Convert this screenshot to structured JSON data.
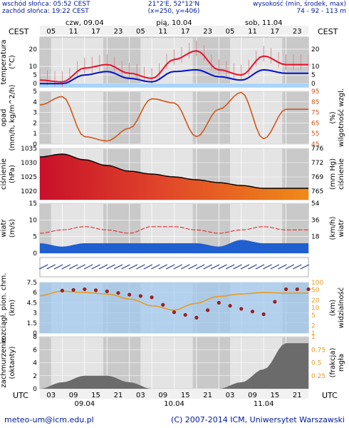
{
  "header": {
    "sunrise": "wschód słońca: 05:52 CEST",
    "sunset": "zachód słońca: 19:22 CEST",
    "coords": "21°2'E, 52°12'N",
    "grid": "(x=250, y=406)",
    "elevation_label": "wysokość (min, środek, max)",
    "elevation_values": "74 - 92 - 113 m"
  },
  "timezone_top": "CEST",
  "timezone_bottom": "UTC",
  "days_top": [
    "czw, 09.04",
    "pią, 10.04",
    "sob, 11.04"
  ],
  "hours_top": [
    "05",
    "11",
    "17",
    "23",
    "05",
    "11",
    "17",
    "23",
    "05",
    "11",
    "17",
    "23"
  ],
  "hours_bottom": [
    "03",
    "09",
    "15",
    "21",
    "03",
    "09",
    "15",
    "21",
    "03",
    "09",
    "15",
    "21"
  ],
  "days_bottom": [
    "09.04",
    "10.04",
    "11.04"
  ],
  "footer": {
    "email": "meteo-um@icm.edu.pl",
    "copyright": "(C) 2007-2014 ICM, Uniwersytet Warszawski"
  },
  "colors": {
    "temp_line": "#e8102a",
    "dew_line": "#0010c8",
    "humidity_line": "#d0561a",
    "pressure_line": "#000000",
    "wind_gust": "#e02020",
    "wind_fill": "#1f5fd0",
    "visibility_line": "#e89a20",
    "cloud_fill": "#6b6b6b",
    "panel_bg": "#e4e4e4",
    "night_bg": "#c9c9c9"
  },
  "chart_data": [
    {
      "type": "line",
      "panel": "temperature",
      "ylabel": "temperatura",
      "yunit": "(°C)",
      "ylim": [
        -2,
        27
      ],
      "yticks": [
        0,
        5,
        10,
        20
      ],
      "x_hours_utc": [
        0,
        6,
        12,
        18,
        24,
        30,
        36,
        42,
        48,
        54,
        60,
        66
      ],
      "series": [
        {
          "values": [
            2,
            1,
            9,
            11,
            6,
            3,
            14,
            19,
            8,
            5,
            16,
            11
          ]
        },
        {
          "values": [
            0,
            0,
            5,
            7,
            3,
            1,
            7,
            8,
            4,
            2,
            8,
            6
          ]
        }
      ]
    },
    {
      "type": "line",
      "panel": "precipitation-humidity",
      "ylabel": "opad",
      "yunit": "(mm/h, kg/m^2/h)",
      "ylim_left": [
        0,
        5
      ],
      "yticks_left": [
        0,
        1,
        2,
        3,
        4,
        5
      ],
      "ylabel_right": "wilgotność wzgl.",
      "yunit_right": "(%)",
      "ylim_right": [
        45,
        95
      ],
      "yticks_right": [
        45,
        55,
        65,
        75,
        85,
        95
      ],
      "x_hours_utc": [
        0,
        6,
        12,
        18,
        24,
        30,
        36,
        42,
        48,
        54,
        60,
        66
      ],
      "series": [
        {
          "values": [
            82,
            90,
            52,
            48,
            60,
            88,
            84,
            52,
            78,
            94,
            50,
            78
          ]
        }
      ]
    },
    {
      "type": "area",
      "panel": "pressure",
      "ylabel": "ciśnienie",
      "yunit": "(hPa)",
      "ylim": [
        1017,
        1035
      ],
      "yticks": [
        1020,
        1025,
        1030,
        1035
      ],
      "ylabel_right": "ciśnienie",
      "yunit_right": "(mm Hg)",
      "yticks_right": [
        765,
        769,
        772,
        776
      ],
      "x_hours_utc": [
        0,
        6,
        12,
        18,
        24,
        30,
        36,
        42,
        48,
        54,
        60,
        66
      ],
      "series": [
        {
          "values": [
            1032,
            1033,
            1031,
            1029,
            1027,
            1026,
            1025,
            1024,
            1023,
            1022,
            1021,
            1021
          ]
        }
      ]
    },
    {
      "type": "area",
      "panel": "wind",
      "ylabel": "wiatr",
      "yunit": "(m/s)",
      "ylim": [
        0,
        15
      ],
      "yticks": [
        0,
        5,
        10,
        15
      ],
      "ylabel_right": "wiatr",
      "yunit_right": "(km/h)",
      "yticks_right": [
        18,
        36,
        54
      ],
      "x_hours_utc": [
        0,
        6,
        12,
        18,
        24,
        30,
        36,
        42,
        48,
        54,
        60,
        66
      ],
      "series": [
        {
          "values": [
            3,
            2,
            3,
            3,
            3,
            3,
            3,
            3,
            2,
            4,
            3,
            3
          ]
        },
        {
          "values": [
            6,
            7,
            8,
            7,
            6,
            8,
            8,
            7,
            6,
            7,
            8,
            7
          ]
        }
      ]
    },
    {
      "type": "scatter",
      "panel": "visibility",
      "ylabel": "rozciągł. pion. chm.",
      "yunit": "(km)",
      "ylim": [
        0,
        7.5
      ],
      "yticks": [
        0.0,
        1.5,
        3.0,
        4.5,
        6.0,
        7.5
      ],
      "ylabel_right": "widzialność",
      "yunit_right": "(km)",
      "yticks_right": [
        1,
        2,
        5,
        10,
        20,
        50,
        100
      ],
      "x_hours_utc": [
        0,
        6,
        12,
        18,
        24,
        30,
        36,
        42,
        48,
        54,
        60,
        66
      ],
      "series": [
        {
          "values": [
            6.7,
            6.3,
            6.5,
            6.2,
            5.7,
            5.3,
            3.1,
            2.3,
            4.5,
            3.6,
            2.8,
            6.5
          ]
        },
        {
          "values": [
            30,
            45,
            40,
            35,
            22,
            12,
            8,
            15,
            28,
            35,
            40,
            38
          ]
        }
      ]
    },
    {
      "type": "area",
      "panel": "cloud-fog",
      "ylabel": "zachmurzenie",
      "yunit": "(oktanty)",
      "ylim": [
        0,
        8
      ],
      "yticks": [
        0,
        2,
        4,
        6,
        8
      ],
      "ylabel_right": "mgła",
      "yunit_right": "(frakcja)",
      "yticks_right": [
        0.25,
        0.5,
        0.75,
        1
      ],
      "x_hours_utc": [
        0,
        6,
        12,
        18,
        24,
        30,
        36,
        42,
        48,
        54,
        60,
        66
      ],
      "series": [
        {
          "values": [
            0,
            1,
            2,
            2,
            1,
            0,
            0,
            0,
            0,
            1,
            3,
            7
          ]
        }
      ]
    }
  ]
}
